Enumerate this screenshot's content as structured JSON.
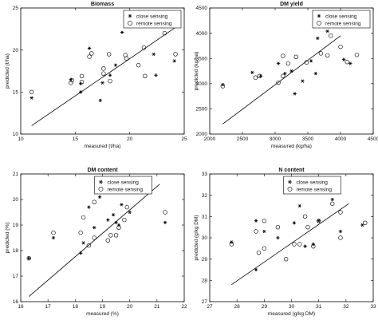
{
  "chart_data": [
    {
      "type": "scatter",
      "title": "Biomass",
      "xlabel": "measured (t/ha)",
      "ylabel": "predicted (t/ha)",
      "xlim": [
        10,
        25
      ],
      "ylim": [
        10,
        25
      ],
      "xticks": [
        "10",
        "15",
        "20",
        "25"
      ],
      "yticks": [
        "10",
        "15",
        "20",
        "25"
      ],
      "legend_position": "top-right",
      "fit_line": [
        [
          11,
          11
        ],
        [
          24.1,
          22.6
        ]
      ],
      "series": [
        {
          "name": "close sensing",
          "marker": "star",
          "points": [
            [
              11.0,
              14.3
            ],
            [
              14.6,
              16.5
            ],
            [
              15.5,
              15.0
            ],
            [
              15.5,
              16.0
            ],
            [
              16.3,
              20.2
            ],
            [
              17.3,
              14.0
            ],
            [
              17.5,
              16.1
            ],
            [
              18.2,
              17.0
            ],
            [
              18.7,
              18.2
            ],
            [
              19.3,
              22.1
            ],
            [
              20.8,
              22.8
            ],
            [
              22.2,
              19.5
            ],
            [
              23.1,
              22.8
            ],
            [
              24.1,
              18.7
            ],
            [
              22.4,
              17.0
            ]
          ]
        },
        {
          "name": "remote sensing",
          "marker": "circle",
          "points": [
            [
              11.0,
              15.0
            ],
            [
              14.6,
              16.1
            ],
            [
              14.7,
              16.4
            ],
            [
              15.6,
              16.2
            ],
            [
              15.6,
              16.9
            ],
            [
              16.3,
              19.2
            ],
            [
              16.5,
              19.6
            ],
            [
              17.6,
              17.8
            ],
            [
              17.6,
              17.2
            ],
            [
              18.1,
              19.5
            ],
            [
              19.6,
              19.4
            ],
            [
              19.7,
              19.0
            ],
            [
              20.8,
              18.2
            ],
            [
              21.3,
              20.3
            ],
            [
              21.4,
              16.9
            ],
            [
              23.2,
              22.0
            ],
            [
              24.2,
              19.5
            ],
            [
              18.2,
              16.3
            ]
          ]
        }
      ]
    },
    {
      "type": "scatter",
      "title": "DM yield",
      "xlabel": "measured (kg/ha)",
      "ylabel": "predicted (kg/ha)",
      "xlim": [
        2000,
        4500
      ],
      "ylim": [
        2000,
        4500
      ],
      "xticks": [
        "2000",
        "2500",
        "3000",
        "3500",
        "4000",
        "4500"
      ],
      "yticks": [
        "2000",
        "2500",
        "3000",
        "3500",
        "4000",
        "4500"
      ],
      "legend_position": "top-right",
      "fit_line": [
        [
          2200,
          2200
        ],
        [
          4000,
          3950
        ]
      ],
      "series": [
        {
          "name": "close sensing",
          "marker": "star",
          "points": [
            [
              2200,
              2980
            ],
            [
              2650,
              3220
            ],
            [
              2780,
              3150
            ],
            [
              3050,
              3400
            ],
            [
              3150,
              3200
            ],
            [
              3250,
              3250
            ],
            [
              3300,
              2800
            ],
            [
              3420,
              3050
            ],
            [
              3620,
              3200
            ],
            [
              3650,
              3900
            ],
            [
              3800,
              4040
            ],
            [
              4050,
              3480
            ],
            [
              4150,
              3400
            ],
            [
              3550,
              3450
            ]
          ]
        },
        {
          "name": "remote sensing",
          "marker": "circle",
          "points": [
            [
              2200,
              2950
            ],
            [
              2700,
              3120
            ],
            [
              2760,
              3150
            ],
            [
              3050,
              3020
            ],
            [
              3120,
              3150
            ],
            [
              3120,
              3550
            ],
            [
              3200,
              3400
            ],
            [
              3320,
              3530
            ],
            [
              3480,
              3420
            ],
            [
              3700,
              3600
            ],
            [
              3800,
              3560
            ],
            [
              3850,
              3950
            ],
            [
              4000,
              3730
            ],
            [
              4100,
              3430
            ],
            [
              4250,
              3570
            ]
          ]
        }
      ]
    },
    {
      "type": "scatter",
      "title": "DM content",
      "xlabel": "measured (%)",
      "ylabel": "predicted (%)",
      "xlim": [
        16,
        22
      ],
      "ylim": [
        16,
        21
      ],
      "xticks": [
        "16",
        "17",
        "18",
        "19",
        "20",
        "21",
        "22"
      ],
      "yticks": [
        "16",
        "17",
        "18",
        "19",
        "20",
        "21"
      ],
      "legend_position": "top-left",
      "fit_line": [
        [
          16.3,
          16.2
        ],
        [
          21.1,
          20.6
        ]
      ],
      "series": [
        {
          "name": "close sensing",
          "marker": "star",
          "points": [
            [
              16.3,
              17.7
            ],
            [
              17.2,
              18.5
            ],
            [
              18.2,
              17.9
            ],
            [
              18.3,
              18.3
            ],
            [
              18.5,
              19.7
            ],
            [
              18.7,
              18.9
            ],
            [
              18.9,
              20.1
            ],
            [
              19.2,
              19.2
            ],
            [
              19.4,
              19.4
            ],
            [
              19.6,
              19.0
            ],
            [
              19.7,
              19.8
            ],
            [
              19.9,
              20.3
            ],
            [
              20.0,
              19.5
            ],
            [
              19.5,
              19.1
            ],
            [
              21.3,
              19.1
            ]
          ]
        },
        {
          "name": "remote sensing",
          "marker": "circle",
          "points": [
            [
              16.3,
              17.7
            ],
            [
              17.2,
              18.7
            ],
            [
              18.2,
              18.7
            ],
            [
              18.3,
              19.3
            ],
            [
              18.7,
              18.5
            ],
            [
              18.7,
              19.9
            ],
            [
              19.2,
              18.4
            ],
            [
              19.3,
              18.6
            ],
            [
              19.5,
              18.6
            ],
            [
              19.6,
              18.9
            ],
            [
              19.8,
              19.2
            ],
            [
              19.9,
              19.7
            ],
            [
              21.3,
              19.5
            ],
            [
              18.5,
              18.2
            ]
          ]
        }
      ]
    },
    {
      "type": "scatter",
      "title": "N content",
      "xlabel": "measured (g/kg DM)",
      "ylabel": "predicted (g/kg DM)",
      "xlim": [
        27,
        33
      ],
      "ylim": [
        27,
        33
      ],
      "xticks": [
        "27",
        "28",
        "29",
        "30",
        "31",
        "32",
        "33"
      ],
      "yticks": [
        "27",
        "28",
        "29",
        "30",
        "31",
        "32",
        "33"
      ],
      "legend_position": "top-left",
      "fit_line": [
        [
          27.8,
          27.8
        ],
        [
          32.1,
          31.6
        ]
      ],
      "series": [
        {
          "name": "close sensing",
          "marker": "star",
          "points": [
            [
              27.8,
              29.8
            ],
            [
              28.7,
              28.5
            ],
            [
              28.7,
              30.8
            ],
            [
              29.0,
              30.3
            ],
            [
              29.5,
              30.0
            ],
            [
              30.3,
              31.5
            ],
            [
              30.5,
              29.6
            ],
            [
              30.8,
              29.7
            ],
            [
              31.0,
              30.8
            ],
            [
              31.5,
              31.8
            ],
            [
              31.8,
              30.3
            ],
            [
              32.6,
              30.6
            ],
            [
              30.1,
              30.7
            ]
          ]
        },
        {
          "name": "remote sensing",
          "marker": "circle",
          "points": [
            [
              27.8,
              29.7
            ],
            [
              28.7,
              30.3
            ],
            [
              28.8,
              29.3
            ],
            [
              29.0,
              29.5
            ],
            [
              29.5,
              30.5
            ],
            [
              29.8,
              29.0
            ],
            [
              30.1,
              29.7
            ],
            [
              30.3,
              29.7
            ],
            [
              30.5,
              31.0
            ],
            [
              30.6,
              30.5
            ],
            [
              30.8,
              29.6
            ],
            [
              31.0,
              30.8
            ],
            [
              31.5,
              31.6
            ],
            [
              31.8,
              31.2
            ],
            [
              31.8,
              30.0
            ],
            [
              32.7,
              30.7
            ],
            [
              29.0,
              30.8
            ]
          ]
        }
      ]
    }
  ]
}
